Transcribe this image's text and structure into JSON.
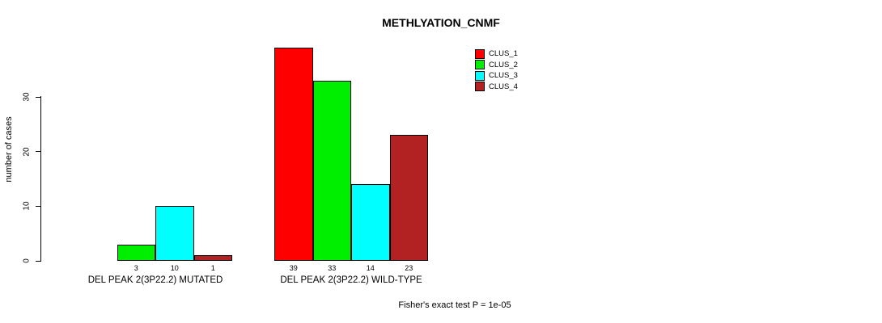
{
  "title": "METHLYATION_CNMF",
  "footer": "Fisher's exact test P = 1e-05",
  "chart_data": {
    "type": "bar",
    "title": "METHLYATION_CNMF",
    "ylabel": "number of cases",
    "xlabel": "",
    "yticks": [
      0,
      10,
      20,
      30
    ],
    "ylim": [
      0,
      39
    ],
    "grid": false,
    "legend_position": "top-right",
    "series": [
      {
        "name": "CLUS_1",
        "color": "#FF0000"
      },
      {
        "name": "CLUS_2",
        "color": "#00EE00"
      },
      {
        "name": "CLUS_3",
        "color": "#00FFFF"
      },
      {
        "name": "CLUS_4",
        "color": "#B22222"
      }
    ],
    "groups": [
      {
        "label": "DEL PEAK 2(3P22.2) MUTATED",
        "values": [
          0,
          3,
          10,
          1
        ],
        "bar_labels": [
          "",
          "3",
          "10",
          "1"
        ]
      },
      {
        "label": "DEL PEAK 2(3P22.2) WILD-TYPE",
        "values": [
          39,
          33,
          14,
          23
        ],
        "bar_labels": [
          "39",
          "33",
          "14",
          "23"
        ]
      }
    ]
  }
}
